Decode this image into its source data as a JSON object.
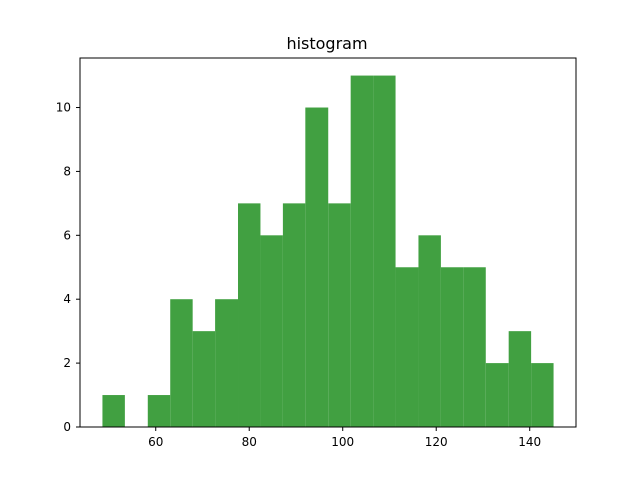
{
  "chart_data": {
    "type": "bar",
    "title": "histogram",
    "xlabel": "",
    "ylabel": "",
    "bins": [
      {
        "x0": 48.6,
        "x1": 53.4,
        "count": 1
      },
      {
        "x0": 53.4,
        "x1": 58.3,
        "count": 0
      },
      {
        "x0": 58.3,
        "x1": 63.1,
        "count": 1
      },
      {
        "x0": 63.1,
        "x1": 67.9,
        "count": 4
      },
      {
        "x0": 67.9,
        "x1": 72.7,
        "count": 3
      },
      {
        "x0": 72.7,
        "x1": 77.6,
        "count": 4
      },
      {
        "x0": 77.6,
        "x1": 82.4,
        "count": 7
      },
      {
        "x0": 82.4,
        "x1": 87.2,
        "count": 6
      },
      {
        "x0": 87.2,
        "x1": 92.0,
        "count": 7
      },
      {
        "x0": 92.0,
        "x1": 96.9,
        "count": 10
      },
      {
        "x0": 96.9,
        "x1": 101.7,
        "count": 7
      },
      {
        "x0": 101.7,
        "x1": 106.5,
        "count": 11
      },
      {
        "x0": 106.5,
        "x1": 111.3,
        "count": 11
      },
      {
        "x0": 111.3,
        "x1": 116.2,
        "count": 5
      },
      {
        "x0": 116.2,
        "x1": 121.0,
        "count": 6
      },
      {
        "x0": 121.0,
        "x1": 125.8,
        "count": 5
      },
      {
        "x0": 125.8,
        "x1": 130.6,
        "count": 5
      },
      {
        "x0": 130.6,
        "x1": 135.5,
        "count": 2
      },
      {
        "x0": 135.5,
        "x1": 140.3,
        "count": 3
      },
      {
        "x0": 140.3,
        "x1": 145.1,
        "count": 2
      }
    ],
    "xlim": [
      43.8,
      149.9
    ],
    "ylim": [
      0,
      11.55
    ],
    "xticks": [
      60,
      80,
      100,
      120,
      140
    ],
    "yticks": [
      0,
      2,
      4,
      6,
      8,
      10
    ],
    "bar_color": "#41a041",
    "grid": false,
    "legend": "none"
  }
}
